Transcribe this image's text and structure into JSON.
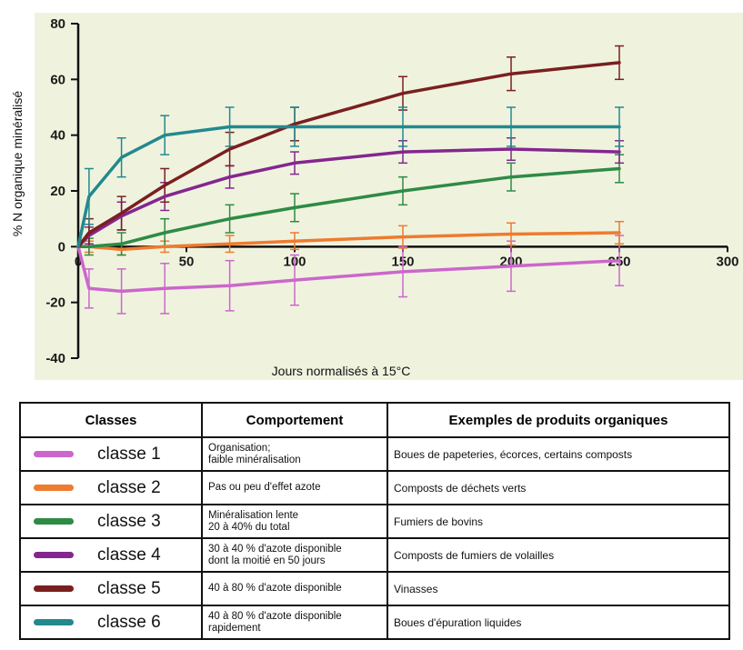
{
  "chart_data": {
    "type": "line",
    "title": "",
    "xlabel": "Jours normalisés à 15°C",
    "ylabel": "% N organique minéralisé",
    "xlim": [
      0,
      300
    ],
    "ylim": [
      -40,
      80
    ],
    "xticks": [
      0,
      50,
      100,
      150,
      200,
      250,
      300
    ],
    "xtick_labels": [
      "0",
      "50",
      "100",
      "150",
      "200",
      "250",
      "300"
    ],
    "yticks": [
      -40,
      -20,
      0,
      20,
      40,
      60,
      80
    ],
    "ytick_labels": [
      "-40",
      "-20",
      "0",
      "20",
      "40",
      "60",
      "80"
    ],
    "grid": false,
    "x": [
      0,
      5,
      20,
      40,
      70,
      100,
      150,
      200,
      250
    ],
    "series": [
      {
        "name": "classe 1",
        "color": "#cc66cc",
        "values": [
          0,
          -15,
          -16,
          -15,
          -14,
          -12,
          -9,
          -7,
          -5
        ],
        "error": [
          0,
          7,
          8,
          9,
          9,
          9,
          9,
          9,
          9
        ]
      },
      {
        "name": "classe 2",
        "color": "#ee7b2f",
        "values": [
          0,
          0,
          -1,
          0,
          1,
          2,
          3.5,
          4.5,
          5
        ],
        "error": [
          0,
          2,
          2,
          2,
          3,
          3,
          4,
          4,
          4
        ]
      },
      {
        "name": "classe 3",
        "color": "#2e8b45",
        "values": [
          0,
          0,
          1,
          5,
          10,
          14,
          20,
          25,
          28
        ],
        "error": [
          0,
          3,
          4,
          5,
          5,
          5,
          5,
          5,
          5
        ]
      },
      {
        "name": "classe 4",
        "color": "#84268f",
        "values": [
          0,
          4,
          11,
          18,
          25,
          30,
          34,
          35,
          34
        ],
        "error": [
          0,
          3,
          5,
          5,
          4,
          4,
          4,
          4,
          4
        ]
      },
      {
        "name": "classe 5",
        "color": "#7a1f1f",
        "values": [
          0,
          5,
          12,
          22,
          35,
          44,
          55,
          62,
          66
        ],
        "error": [
          0,
          5,
          6,
          6,
          6,
          6,
          6,
          6,
          6
        ]
      },
      {
        "name": "classe 6",
        "color": "#22898e",
        "values": [
          0,
          18,
          32,
          40,
          43,
          43,
          43,
          43,
          43
        ],
        "error": [
          0,
          10,
          7,
          7,
          7,
          7,
          7,
          7,
          7
        ]
      }
    ]
  },
  "table": {
    "headers": [
      "Classes",
      "Comportement",
      "Exemples de produits organiques"
    ],
    "rows": [
      {
        "class": "classe 1",
        "color": "#cc66cc",
        "behavior": "Organisation;\nfaible minéralisation",
        "examples": "Boues de papeteries, écorces, certains composts"
      },
      {
        "class": "classe 2",
        "color": "#ee7b2f",
        "behavior": "Pas ou peu d'effet azote",
        "examples": "Composts de déchets verts"
      },
      {
        "class": "classe 3",
        "color": "#2e8b45",
        "behavior": "Minéralisation lente\n20 à 40% du total",
        "examples": "Fumiers de bovins"
      },
      {
        "class": "classe 4",
        "color": "#84268f",
        "behavior": "30 à 40 % d'azote disponible\ndont la moitié en 50 jours",
        "examples": "Composts de fumiers de volailles"
      },
      {
        "class": "classe 5",
        "color": "#7a1f1f",
        "behavior": "40 à 80 % d'azote disponible",
        "examples": "Vinasses"
      },
      {
        "class": "classe 6",
        "color": "#22898e",
        "behavior": "40 à 80 % d'azote disponible\nrapidement",
        "examples": "Boues d'épuration liquides"
      }
    ]
  }
}
